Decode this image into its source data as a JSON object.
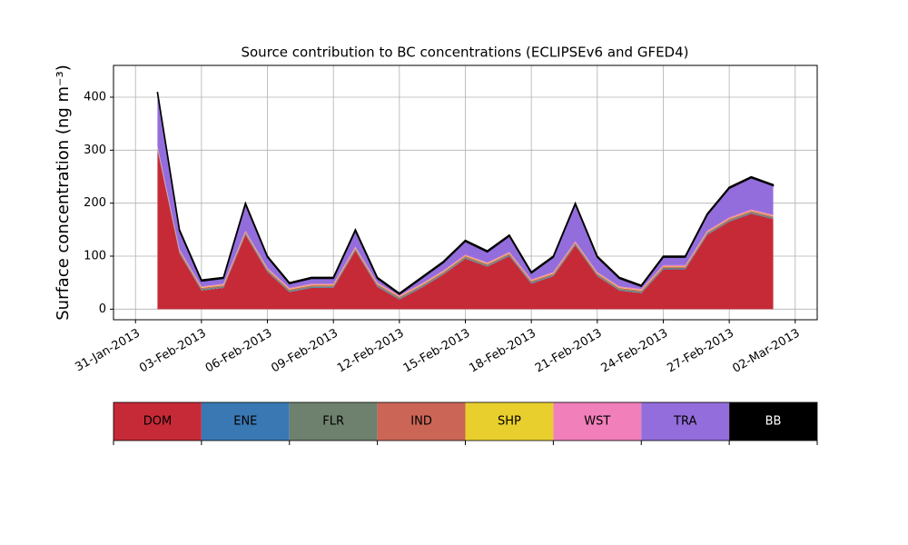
{
  "chart_data": {
    "type": "stacked_area",
    "title": "Source contribution to BC concentrations (ECLIPSEv6 and GFED4)",
    "ylabel": "Surface concentration (ng m⁻³)",
    "x": [
      "2013-02-01",
      "2013-02-02",
      "2013-02-03",
      "2013-02-04",
      "2013-02-05",
      "2013-02-06",
      "2013-02-07",
      "2013-02-08",
      "2013-02-09",
      "2013-02-10",
      "2013-02-11",
      "2013-02-12",
      "2013-02-13",
      "2013-02-14",
      "2013-02-15",
      "2013-02-16",
      "2013-02-17",
      "2013-02-18",
      "2013-02-19",
      "2013-02-20",
      "2013-02-21",
      "2013-02-22",
      "2013-02-23",
      "2013-02-24",
      "2013-02-25",
      "2013-02-26",
      "2013-02-27",
      "2013-02-28",
      "2013-03-01"
    ],
    "series": [
      {
        "name": "DOM",
        "color": "#c62a37",
        "values": [
          300,
          105,
          35,
          40,
          140,
          70,
          32,
          40,
          40,
          110,
          42,
          18,
          40,
          65,
          95,
          80,
          100,
          48,
          62,
          120,
          62,
          35,
          30,
          75,
          75,
          140,
          165,
          180,
          170
        ]
      },
      {
        "name": "ENE",
        "color": "#3a78b3",
        "values": [
          1,
          1,
          1,
          1,
          1,
          1,
          1,
          1,
          1,
          1,
          1,
          1,
          1,
          1,
          1,
          1,
          1,
          1,
          1,
          1,
          1,
          1,
          1,
          1,
          1,
          1,
          1,
          1,
          1
        ]
      },
      {
        "name": "FLR",
        "color": "#6e806e",
        "values": [
          2,
          2,
          2,
          2,
          2,
          2,
          2,
          2,
          2,
          2,
          2,
          2,
          2,
          2,
          2,
          2,
          2,
          2,
          2,
          2,
          2,
          2,
          2,
          2,
          2,
          2,
          2,
          2,
          2
        ]
      },
      {
        "name": "IND",
        "color": "#cb6656",
        "values": [
          2,
          2,
          2,
          2,
          2,
          2,
          2,
          2,
          2,
          2,
          2,
          2,
          2,
          2,
          2,
          2,
          2,
          2,
          2,
          2,
          2,
          2,
          2,
          2,
          2,
          2,
          2,
          2,
          2
        ]
      },
      {
        "name": "SHP",
        "color": "#e8cf2e",
        "values": [
          1,
          1,
          1,
          1,
          1,
          1,
          1,
          1,
          1,
          1,
          1,
          1,
          1,
          1,
          1,
          1,
          1,
          1,
          1,
          1,
          1,
          1,
          1,
          1,
          1,
          1,
          1,
          1,
          1
        ]
      },
      {
        "name": "WST",
        "color": "#f07fba",
        "values": [
          2,
          2,
          2,
          2,
          2,
          2,
          2,
          2,
          2,
          2,
          2,
          2,
          2,
          2,
          2,
          2,
          2,
          2,
          2,
          2,
          2,
          2,
          2,
          2,
          2,
          2,
          2,
          2,
          2
        ]
      },
      {
        "name": "TRA",
        "color": "#936ddb",
        "values": [
          100,
          35,
          10,
          10,
          50,
          20,
          8,
          10,
          10,
          30,
          8,
          2,
          10,
          15,
          25,
          20,
          30,
          12,
          28,
          70,
          28,
          15,
          5,
          15,
          15,
          30,
          55,
          60,
          55
        ]
      },
      {
        "name": "BB",
        "color": "#000000",
        "values": [
          2,
          2,
          2,
          2,
          2,
          2,
          2,
          2,
          2,
          2,
          2,
          2,
          2,
          2,
          2,
          2,
          2,
          2,
          2,
          2,
          2,
          2,
          2,
          2,
          2,
          2,
          2,
          2,
          2
        ]
      }
    ],
    "xlim": [
      "2013-01-30",
      "2013-03-03"
    ],
    "xticks": [
      {
        "value": "2013-01-31",
        "label": "31-Jan-2013"
      },
      {
        "value": "2013-02-03",
        "label": "03-Feb-2013"
      },
      {
        "value": "2013-02-06",
        "label": "06-Feb-2013"
      },
      {
        "value": "2013-02-09",
        "label": "09-Feb-2013"
      },
      {
        "value": "2013-02-12",
        "label": "12-Feb-2013"
      },
      {
        "value": "2013-02-15",
        "label": "15-Feb-2013"
      },
      {
        "value": "2013-02-18",
        "label": "18-Feb-2013"
      },
      {
        "value": "2013-02-21",
        "label": "21-Feb-2013"
      },
      {
        "value": "2013-02-24",
        "label": "24-Feb-2013"
      },
      {
        "value": "2013-02-27",
        "label": "27-Feb-2013"
      },
      {
        "value": "2013-03-02",
        "label": "02-Mar-2013"
      }
    ],
    "ylim": [
      -20,
      460
    ],
    "yticks": [
      0,
      100,
      200,
      300,
      400
    ],
    "grid": true
  }
}
